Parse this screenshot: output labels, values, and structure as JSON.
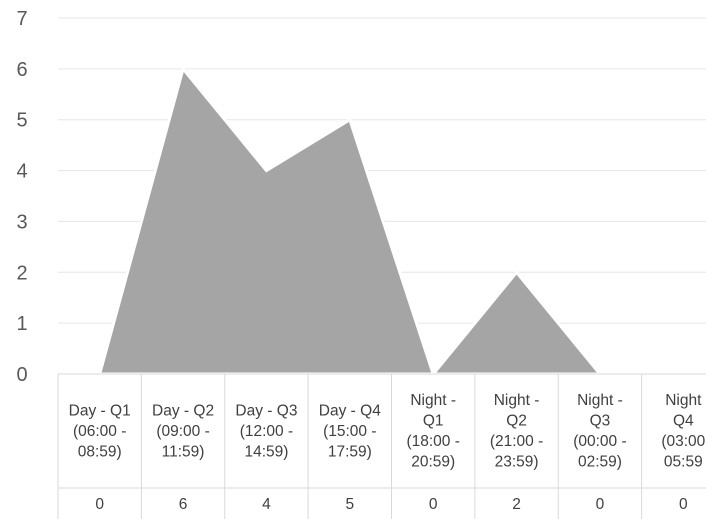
{
  "chart_data": {
    "type": "area",
    "categories": [
      [
        "Day - Q1",
        "(06:00 -",
        "08:59)"
      ],
      [
        "Day - Q2",
        "(09:00 -",
        "11:59)"
      ],
      [
        "Day - Q3",
        "(12:00 -",
        "14:59)"
      ],
      [
        "Day - Q4",
        "(15:00 -",
        "17:59)"
      ],
      [
        "Night -",
        "Q1",
        "(18:00 -",
        "20:59)"
      ],
      [
        "Night -",
        "Q2",
        "(21:00 -",
        "23:59)"
      ],
      [
        "Night -",
        "Q3",
        "(00:00 -",
        "02:59)"
      ],
      [
        "Night",
        "Q4",
        "(03:00",
        "05:59"
      ]
    ],
    "values": [
      0,
      6,
      4,
      5,
      0,
      2,
      0,
      0
    ],
    "ylim": [
      0,
      7
    ],
    "yticks": [
      0,
      1,
      2,
      3,
      4,
      5,
      6,
      7
    ],
    "grid": true,
    "data_table": true,
    "colors": {
      "area": "#a5a5a5",
      "grid": "#e6e6e6",
      "table_border": "#d9d9d9"
    }
  }
}
